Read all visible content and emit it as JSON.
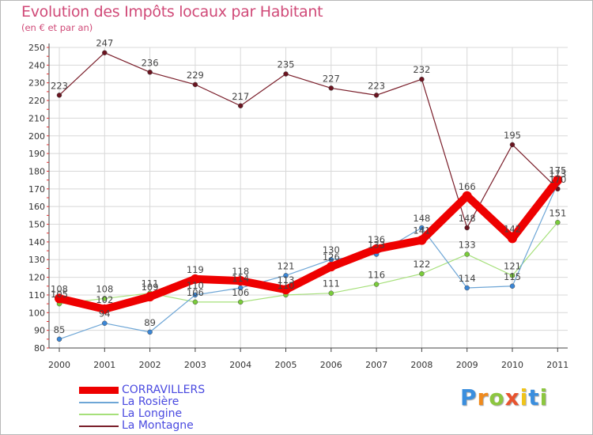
{
  "header": {
    "title": "Evolution des Impôts locaux par Habitant",
    "subtitle": "(en € et par an)"
  },
  "logo": {
    "letters": [
      "P",
      "r",
      "o",
      "x",
      "i",
      "t",
      "i"
    ],
    "colors": [
      "#3a8ede",
      "#f08a1c",
      "#8cc63f",
      "#e8532e",
      "#f0c419",
      "#3a8ede",
      "#8cc63f"
    ]
  },
  "chart_data": {
    "type": "line",
    "title": "Evolution des Impôts locaux par Habitant",
    "subtitle": "(en € et par an)",
    "xlabel": "",
    "ylabel": "",
    "categories": [
      "2000",
      "2001",
      "2002",
      "2003",
      "2004",
      "2005",
      "2006",
      "2007",
      "2008",
      "2009",
      "2010",
      "2011"
    ],
    "ylim": [
      80,
      250
    ],
    "yticks": [
      80,
      90,
      100,
      110,
      120,
      130,
      140,
      150,
      160,
      170,
      180,
      190,
      200,
      210,
      220,
      230,
      240,
      250
    ],
    "grid": true,
    "legend_position": "bottom-left",
    "series": [
      {
        "name": "La Montagne",
        "color": "#7a1e2a",
        "point_color": "#6a1420",
        "values": [
          223,
          247,
          236,
          229,
          217,
          235,
          227,
          223,
          232,
          148,
          195,
          170
        ],
        "labels": [
          "223",
          "247",
          "236",
          "229",
          "217",
          "235",
          "227",
          "223",
          "232",
          "148",
          "195",
          "170"
        ]
      },
      {
        "name": "La Longine",
        "color": "#a6e07a",
        "point_color": "#7acc3a",
        "values": [
          105,
          108,
          111,
          106,
          106,
          110,
          111,
          116,
          122,
          133,
          121,
          151
        ],
        "labels": [
          "105",
          "108",
          "111",
          "106",
          "106",
          "110",
          "111",
          "116",
          "122",
          "133",
          "121",
          "151"
        ]
      },
      {
        "name": "La Rosière",
        "color": "#6ea6d6",
        "point_color": "#3a86d6",
        "values": [
          85,
          94,
          89,
          110,
          114,
          121,
          130,
          133,
          148,
          114,
          115,
          173
        ],
        "labels": [
          "85",
          "94",
          "89",
          "110",
          "114",
          "121",
          "130",
          "133",
          "148",
          "114",
          "115",
          "173"
        ]
      },
      {
        "name": "CORRAVILLERS",
        "color": "#ee0000",
        "point_color": "#ee0000",
        "values": [
          108,
          102,
          109,
          119,
          118,
          113,
          126,
          136,
          141,
          166,
          142,
          175
        ],
        "labels": [
          "108",
          "102",
          "109",
          "119",
          "118",
          "113",
          "126",
          "136",
          "141",
          "166",
          "142",
          "175"
        ]
      }
    ]
  }
}
